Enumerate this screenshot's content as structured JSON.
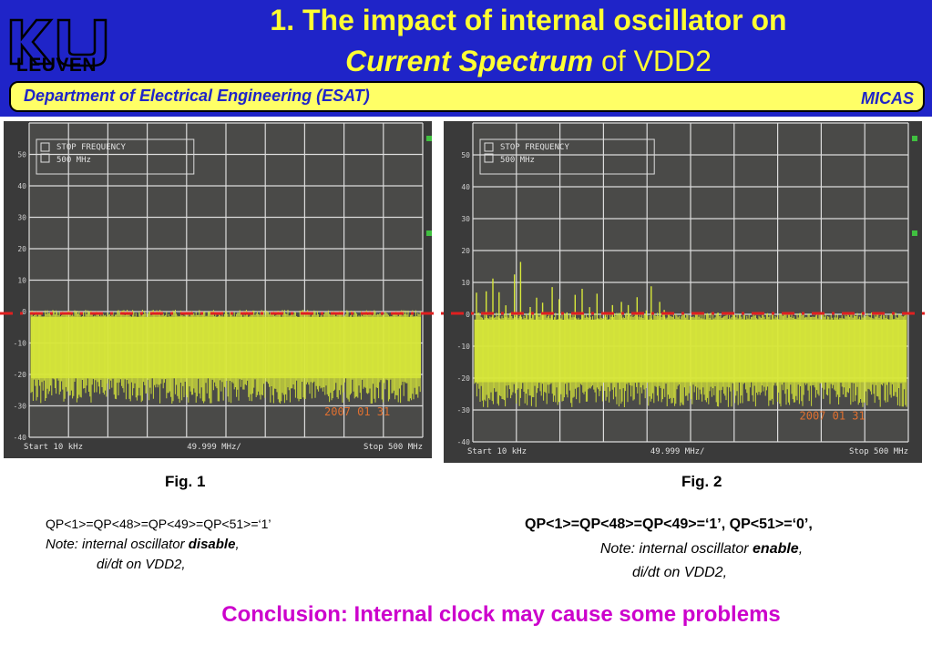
{
  "header": {
    "logo_text": "LEUVEN",
    "title_line1": "1.  The impact of internal oscillator on",
    "title_line2_italic": "Current Spectrum",
    "title_line2_rest": " of VDD2",
    "department": "Department of Electrical Engineering (ESAT)",
    "group": "MICAS"
  },
  "screens": [
    {
      "stop_frequency_label": "STOP FREQUENCY",
      "stop_frequency_value": "500 MHz",
      "y_ticks": [
        "50",
        "40",
        "30",
        "20",
        "10",
        "0",
        "-10",
        "-20",
        "-30",
        "-40"
      ],
      "start": "Start 10 kHz",
      "center": "49.999 MHz/",
      "stop": "Stop 500 MHz",
      "date": "2007 01 31",
      "oscillator": "disable"
    },
    {
      "stop_frequency_label": "STOP FREQUENCY",
      "stop_frequency_value": "500 MHz",
      "y_ticks": [
        "50",
        "40",
        "30",
        "20",
        "10",
        "0",
        "-10",
        "-20",
        "-30",
        "-40"
      ],
      "start": "Start 10 kHz",
      "center": "49.999 MHz/",
      "stop": "Stop 500 MHz",
      "date": "2007 01 31",
      "oscillator": "enable"
    }
  ],
  "fig1": {
    "caption": "Fig. 1",
    "qp": "QP<1>=QP<48>=QP<49>=QP<51>=‘1’",
    "note_prefix": "Note:  internal oscillator ",
    "note_bold": "disable",
    "note_suffix": ",",
    "didt": "di/dt on VDD2,"
  },
  "fig2": {
    "caption": "Fig. 2",
    "qp": "QP<1>=QP<48>=QP<49>=‘1’, QP<51>=‘0’,",
    "note_prefix": "Note:  internal oscillator ",
    "note_bold": "enable",
    "note_suffix": ",",
    "didt": "di/dt on VDD2,"
  },
  "conclusion": "Conclusion:  Internal clock may cause some problems",
  "colors": {
    "header_bg": "#1f24c8",
    "title": "#ffff33",
    "band": "#ffff66",
    "trace": "#d8e83a",
    "grid": "#dcdcdc",
    "threshold_line": "#e02020",
    "conclusion": "#cc00cc"
  }
}
